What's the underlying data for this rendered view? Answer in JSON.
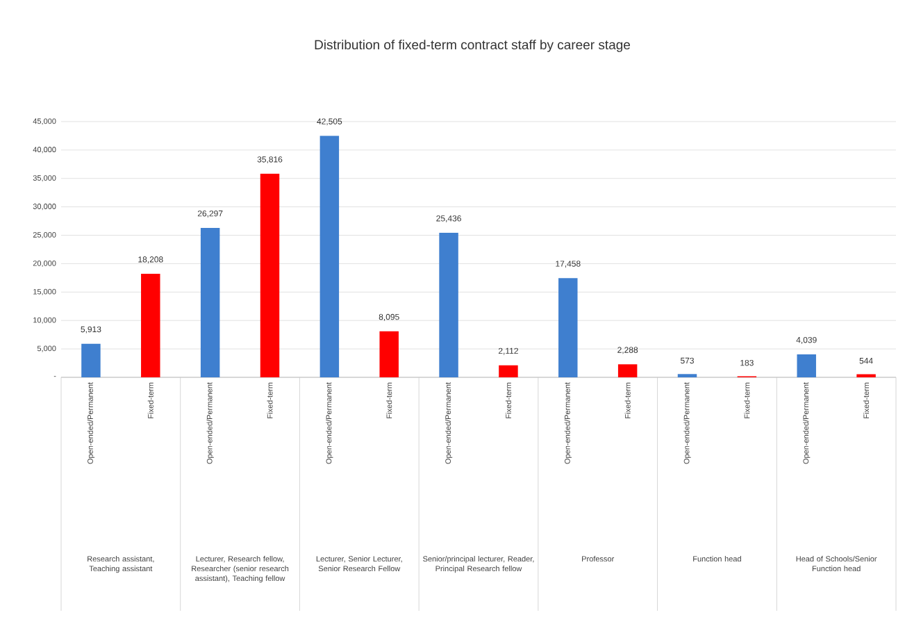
{
  "chart_data": {
    "type": "bar",
    "title": "Distribution of fixed-term contract staff by career stage",
    "categories": [
      "Open-ended/Permanent",
      "Fixed-term",
      "Open-ended/Permanent",
      "Fixed-term",
      "Open-ended/Permanent",
      "Fixed-term",
      "Open-ended/Permanent",
      "Fixed-term",
      "Open-ended/Permanent",
      "Fixed-term",
      "Open-ended/Permanent",
      "Fixed-term",
      "Open-ended/Permanent",
      "Fixed-term"
    ],
    "values": [
      5913,
      18208,
      26297,
      35816,
      42505,
      8095,
      25436,
      2112,
      17458,
      2288,
      573,
      183,
      4039,
      544
    ],
    "value_labels": [
      "5,913",
      "18,208",
      "26,297",
      "35,816",
      "42,505",
      "8,095",
      "25,436",
      "2,112",
      "17,458",
      "2,288",
      "573",
      "183",
      "4,039",
      "544"
    ],
    "colors": [
      "#3f7fcf",
      "#ff0000",
      "#3f7fcf",
      "#ff0000",
      "#3f7fcf",
      "#ff0000",
      "#3f7fcf",
      "#ff0000",
      "#3f7fcf",
      "#ff0000",
      "#3f7fcf",
      "#ff0000",
      "#3f7fcf",
      "#ff0000"
    ],
    "annotations": [
      "Research assistant, Teaching assistant",
      "Lecturer, Research fellow, Researcher (senior research assistant), Teaching fellow",
      "Lecturer, Senior Lecturer, Senior Research Fellow",
      "Senior/principal lecturer, Reader, Principal Research fellow",
      "Professor",
      "Function head",
      "Head of Schools/Senior Function head"
    ],
    "ylim": [
      0,
      45000
    ],
    "yticks": [
      {
        "value": 0,
        "label": "-"
      },
      {
        "value": 5000,
        "label": "5,000"
      },
      {
        "value": 10000,
        "label": "10,000"
      },
      {
        "value": 15000,
        "label": "15,000"
      },
      {
        "value": 20000,
        "label": "20,000"
      },
      {
        "value": 25000,
        "label": "25,000"
      },
      {
        "value": 30000,
        "label": "30,000"
      },
      {
        "value": 35000,
        "label": "35,000"
      },
      {
        "value": 40000,
        "label": "40,000"
      },
      {
        "value": 45000,
        "label": "45,000"
      }
    ],
    "grid": "y"
  }
}
